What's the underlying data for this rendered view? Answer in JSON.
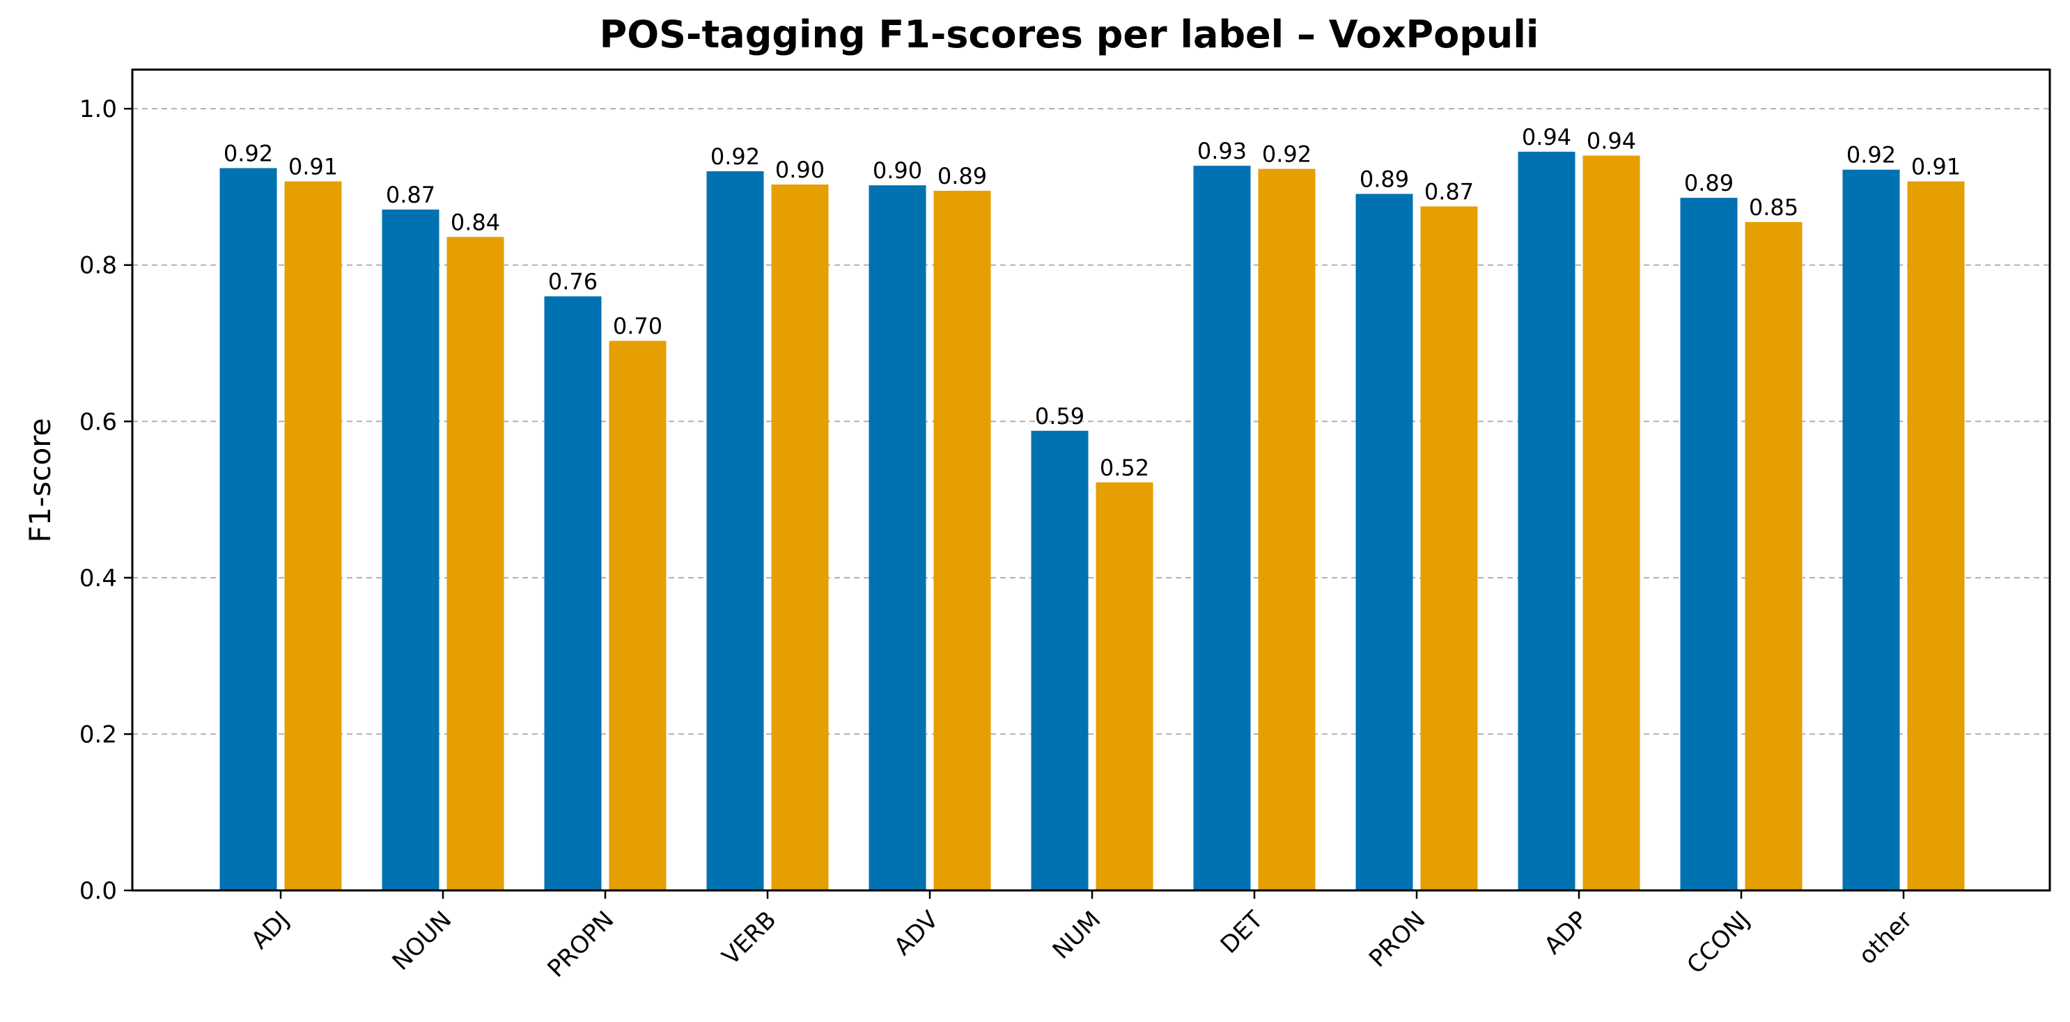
{
  "chart_data": {
    "type": "bar",
    "title": "POS-tagging F1-scores per label – VoxPopuli",
    "xlabel": "",
    "ylabel": "F1-score",
    "ylim": [
      0,
      1.05
    ],
    "yticks": [
      "0.0",
      "0.2",
      "0.4",
      "0.6",
      "0.8",
      "1.0"
    ],
    "grid": "y, dashed",
    "categories": [
      "ADJ",
      "NOUN",
      "PROPN",
      "VERB",
      "ADV",
      "NUM",
      "DET",
      "PRON",
      "ADP",
      "CCONJ",
      "other"
    ],
    "series": [
      {
        "color": "#0072B2",
        "values": [
          0.924,
          0.871,
          0.76,
          0.92,
          0.902,
          0.588,
          0.927,
          0.891,
          0.945,
          0.886,
          0.922
        ],
        "labels": [
          "0.92",
          "0.87",
          "0.76",
          "0.92",
          "0.90",
          "0.59",
          "0.93",
          "0.89",
          "0.94",
          "0.89",
          "0.92"
        ]
      },
      {
        "color": "#E69F00",
        "values": [
          0.907,
          0.836,
          0.703,
          0.903,
          0.895,
          0.522,
          0.923,
          0.875,
          0.94,
          0.855,
          0.907
        ],
        "labels": [
          "0.91",
          "0.84",
          "0.70",
          "0.90",
          "0.89",
          "0.52",
          "0.92",
          "0.87",
          "0.94",
          "0.85",
          "0.91"
        ]
      }
    ]
  }
}
